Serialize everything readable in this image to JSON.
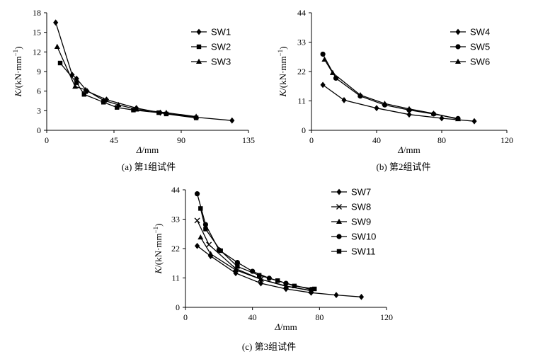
{
  "chart_data": [
    {
      "type": "line",
      "caption": "(a) 第1组试件",
      "xlabel": "Δ/mm",
      "ylabel_parts": [
        "K",
        "/(kN·mm",
        "−1",
        ")"
      ],
      "xlim": [
        0,
        135
      ],
      "ylim": [
        0,
        18
      ],
      "xticks": [
        0,
        45,
        90,
        135
      ],
      "yticks": [
        0,
        3,
        6,
        9,
        12,
        15,
        18
      ],
      "legend_position": "top-right",
      "series": [
        {
          "name": "SW1",
          "marker": "diamond",
          "x": [
            6,
            17,
            20,
            27,
            40,
            60,
            76,
            100,
            124
          ],
          "y": [
            16.5,
            8.5,
            7.9,
            6.0,
            4.7,
            3.4,
            2.7,
            2.0,
            1.5
          ]
        },
        {
          "name": "SW2",
          "marker": "square",
          "x": [
            9,
            20,
            25,
            38,
            47,
            58,
            75,
            80,
            100
          ],
          "y": [
            10.3,
            7.3,
            5.5,
            4.3,
            3.5,
            3.1,
            2.7,
            2.5,
            1.9
          ]
        },
        {
          "name": "SW3",
          "marker": "triangle",
          "x": [
            7,
            19,
            26,
            38,
            48,
            60,
            80,
            100
          ],
          "y": [
            12.8,
            6.7,
            6.2,
            4.6,
            3.9,
            3.2,
            2.7,
            2.1
          ]
        }
      ]
    },
    {
      "type": "line",
      "caption": "(b) 第2组试件",
      "xlabel": "Δ/mm",
      "ylabel_parts": [
        "K",
        "/(kN·mm",
        "−1",
        ")"
      ],
      "xlim": [
        0,
        120
      ],
      "ylim": [
        0,
        44
      ],
      "xticks": [
        0,
        40,
        80,
        120
      ],
      "yticks": [
        0,
        11,
        22,
        33,
        44
      ],
      "legend_position": "top-right",
      "series": [
        {
          "name": "SW4",
          "marker": "diamond",
          "x": [
            7,
            20,
            40,
            60,
            80,
            100
          ],
          "y": [
            17,
            11.3,
            8.3,
            5.9,
            4.5,
            3.4
          ]
        },
        {
          "name": "SW5",
          "marker": "circle",
          "x": [
            7,
            15,
            30,
            45,
            60,
            75,
            90
          ],
          "y": [
            28.5,
            19.5,
            12.8,
            9.5,
            7.6,
            6.1,
            4.4
          ]
        },
        {
          "name": "SW6",
          "marker": "triangle",
          "x": [
            8,
            13,
            30,
            45,
            60,
            75,
            90
          ],
          "y": [
            26.5,
            21.5,
            13.2,
            10.0,
            8.0,
            6.3,
            4.2
          ]
        }
      ]
    },
    {
      "type": "line",
      "caption": "(c) 第3组试件",
      "xlabel": "Δ/mm",
      "ylabel_parts": [
        "K",
        "/(kN·mm",
        "−1",
        ")"
      ],
      "xlim": [
        0,
        120
      ],
      "ylim": [
        0,
        44
      ],
      "xticks": [
        0,
        40,
        80,
        120
      ],
      "yticks": [
        0,
        11,
        22,
        33,
        44
      ],
      "legend_position": "top-right",
      "series": [
        {
          "name": "SW7",
          "marker": "diamond",
          "x": [
            7,
            15,
            30,
            45,
            60,
            75,
            90,
            105
          ],
          "y": [
            23,
            19.2,
            12.8,
            9.0,
            6.9,
            5.5,
            4.6,
            3.9
          ]
        },
        {
          "name": "SW8",
          "marker": "x",
          "x": [
            7,
            14,
            30,
            45,
            60,
            75
          ],
          "y": [
            32.5,
            23.5,
            14.5,
            10.5,
            8.0,
            6.2
          ]
        },
        {
          "name": "SW9",
          "marker": "triangle",
          "x": [
            9,
            15,
            30,
            45,
            60,
            75
          ],
          "y": [
            26.2,
            20.0,
            14.0,
            10.5,
            7.9,
            6.3
          ]
        },
        {
          "name": "SW10",
          "marker": "circle",
          "x": [
            7,
            12,
            20,
            31,
            40,
            50,
            60,
            75
          ],
          "y": [
            42.5,
            31.0,
            21.5,
            16.8,
            13.5,
            10.9,
            9.0,
            6.7
          ]
        },
        {
          "name": "SW11",
          "marker": "square",
          "x": [
            9,
            12,
            21,
            31,
            44,
            55,
            65,
            77
          ],
          "y": [
            37.0,
            29.3,
            21.2,
            15.3,
            12.0,
            10.0,
            8.0,
            6.9
          ]
        }
      ]
    }
  ]
}
